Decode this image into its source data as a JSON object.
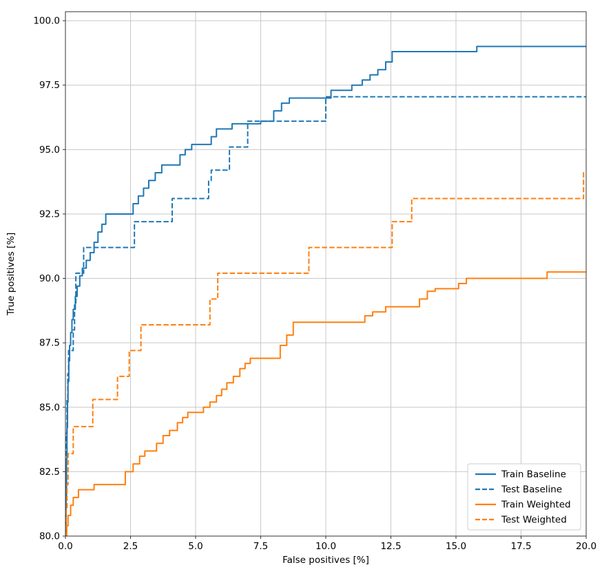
{
  "chart_data": {
    "type": "line",
    "title": "",
    "xlabel": "False positives [%]",
    "ylabel": "True positives [%]",
    "xlim": [
      0,
      20
    ],
    "ylim": [
      80,
      100.35
    ],
    "grid": true,
    "step": "post",
    "legend_position": "lower right",
    "xticks": [
      0,
      2.5,
      5,
      7.5,
      10,
      12.5,
      15,
      17.5,
      20
    ],
    "xtick_labels": [
      "0.0",
      "2.5",
      "5.0",
      "7.5",
      "10.0",
      "12.5",
      "15.0",
      "17.5",
      "20.0"
    ],
    "yticks": [
      80,
      82.5,
      85,
      87.5,
      90,
      92.5,
      95,
      97.5,
      100
    ],
    "ytick_labels": [
      "80.0",
      "82.5",
      "85.0",
      "87.5",
      "90.0",
      "92.5",
      "95.0",
      "97.5",
      "100.0"
    ],
    "colors": {
      "blue": "#1f77b4",
      "orange": "#ff7f0e",
      "grid": "#c8c8c8",
      "spine": "#333333",
      "text": "#000000",
      "legend_border": "#cccccc",
      "legend_bg": "#ffffff"
    },
    "series": [
      {
        "name": "Train Baseline",
        "color": "#1f77b4",
        "dash": "solid",
        "x": [
          0,
          0.02,
          0.04,
          0.06,
          0.08,
          0.1,
          0.13,
          0.16,
          0.2,
          0.25,
          0.3,
          0.38,
          0.45,
          0.55,
          0.65,
          0.8,
          0.95,
          1.1,
          1.25,
          1.4,
          1.55,
          2.6,
          2.8,
          3.0,
          3.2,
          3.45,
          3.7,
          4.4,
          4.6,
          4.85,
          5.6,
          5.8,
          6.4,
          7.5,
          8.0,
          8.3,
          8.6,
          10.2,
          11.0,
          11.4,
          11.7,
          12.0,
          12.3,
          12.55,
          15.8,
          20
        ],
        "y": [
          80,
          81.5,
          83,
          84.2,
          85.2,
          86,
          86.8,
          87.4,
          87.9,
          88.4,
          88.8,
          89.3,
          89.7,
          90.1,
          90.4,
          90.7,
          91,
          91.4,
          91.8,
          92.1,
          92.5,
          92.9,
          93.2,
          93.5,
          93.8,
          94.1,
          94.4,
          94.8,
          95,
          95.2,
          95.5,
          95.8,
          96,
          96.1,
          96.5,
          96.8,
          97,
          97.3,
          97.5,
          97.7,
          97.9,
          98.1,
          98.4,
          98.8,
          99,
          99
        ]
      },
      {
        "name": "Test Baseline",
        "color": "#1f77b4",
        "dash": "dashed",
        "x": [
          0,
          0.02,
          0.04,
          0.06,
          0.09,
          0.12,
          0.3,
          0.35,
          0.4,
          0.7,
          2.65,
          4.1,
          5.5,
          5.6,
          6.3,
          7.0,
          10.0,
          20
        ],
        "y": [
          80,
          82,
          84,
          85.3,
          86.3,
          87.2,
          88,
          89,
          90.2,
          91.2,
          92.2,
          93.1,
          93.8,
          94.2,
          95.1,
          96.1,
          97.05,
          97.05
        ]
      },
      {
        "name": "Train Weighted",
        "color": "#ff7f0e",
        "dash": "solid",
        "x": [
          0,
          0.05,
          0.1,
          0.2,
          0.3,
          0.5,
          1.1,
          2.3,
          2.6,
          2.85,
          3.05,
          3.5,
          3.75,
          4.0,
          4.3,
          4.5,
          4.7,
          5.3,
          5.55,
          5.8,
          6.0,
          6.2,
          6.45,
          6.7,
          6.9,
          7.1,
          8.25,
          8.5,
          8.75,
          11.5,
          11.8,
          12.3,
          13.6,
          13.9,
          14.2,
          15.1,
          15.4,
          18.5,
          20
        ],
        "y": [
          80,
          80.4,
          80.8,
          81.2,
          81.5,
          81.8,
          82,
          82.5,
          82.8,
          83.1,
          83.3,
          83.6,
          83.9,
          84.1,
          84.4,
          84.6,
          84.8,
          85,
          85.2,
          85.45,
          85.7,
          85.95,
          86.2,
          86.5,
          86.7,
          86.9,
          87.4,
          87.8,
          88.3,
          88.55,
          88.7,
          88.9,
          89.2,
          89.5,
          89.6,
          89.8,
          90,
          90.25,
          90.25
        ]
      },
      {
        "name": "Test Weighted",
        "color": "#ff7f0e",
        "dash": "dashed",
        "x": [
          0,
          0.03,
          0.06,
          0.1,
          0.3,
          1.05,
          2.0,
          2.45,
          2.9,
          5.55,
          5.85,
          9.35,
          12.55,
          13.3,
          19.9,
          20
        ],
        "y": [
          80,
          81,
          82,
          83.2,
          84.25,
          85.3,
          86.2,
          87.2,
          88.2,
          89.2,
          90.2,
          91.2,
          92.2,
          93.1,
          94.1,
          94.1
        ]
      }
    ]
  }
}
